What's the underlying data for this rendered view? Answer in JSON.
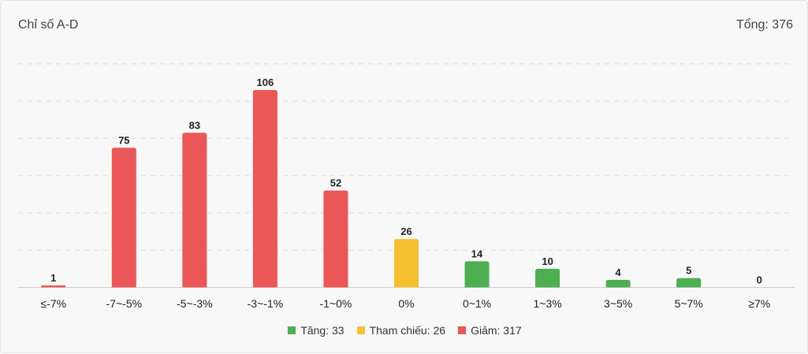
{
  "header": {
    "title": "Chỉ số A-D",
    "total_label": "Tổng: 376"
  },
  "colors": {
    "up": "#4caf50",
    "ref": "#f4c030",
    "down": "#eb5757",
    "grid": "#dddddd"
  },
  "legend": [
    {
      "label": "Tăng: 33",
      "kind": "up"
    },
    {
      "label": "Tham chiếu: 26",
      "kind": "ref"
    },
    {
      "label": "Giảm: 317",
      "kind": "down"
    }
  ],
  "chart_data": {
    "type": "bar",
    "title": "Chỉ số A-D",
    "categories": [
      "≤-7%",
      "-7~-5%",
      "-5~-3%",
      "-3~-1%",
      "-1~0%",
      "0%",
      "0~1%",
      "1~3%",
      "3~5%",
      "5~7%",
      "≥7%"
    ],
    "values": [
      1,
      75,
      83,
      106,
      52,
      26,
      14,
      10,
      4,
      5,
      0
    ],
    "kinds": [
      "down",
      "down",
      "down",
      "down",
      "down",
      "ref",
      "up",
      "up",
      "up",
      "up",
      "up"
    ],
    "ylim": [
      0,
      120
    ],
    "grid": true,
    "legend_position": "bottom"
  }
}
